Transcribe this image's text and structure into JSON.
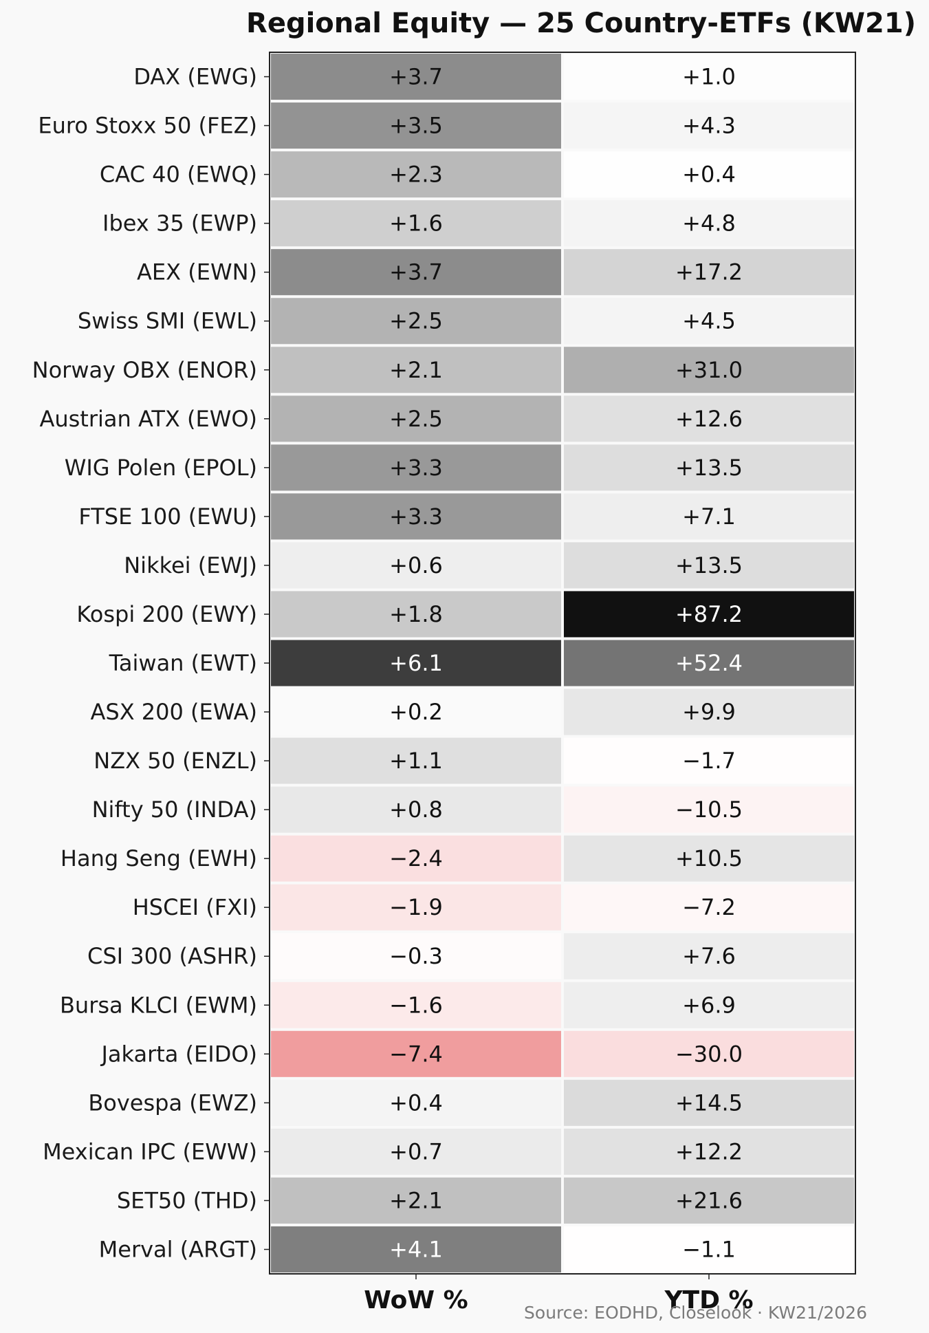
{
  "chart_data": {
    "type": "heatmap",
    "title": "Regional Equity — 25 Country-ETFs (KW21)",
    "source": "Source: EODHD, Closelook · KW21/2026",
    "rows": [
      "DAX (EWG)",
      "Euro Stoxx 50 (FEZ)",
      "CAC 40 (EWQ)",
      "Ibex 35 (EWP)",
      "AEX (EWN)",
      "Swiss SMI (EWL)",
      "Norway OBX (ENOR)",
      "Austrian ATX (EWO)",
      "WIG Polen (EPOL)",
      "FTSE 100 (EWU)",
      "Nikkei (EWJ)",
      "Kospi 200 (EWY)",
      "Taiwan (EWT)",
      "ASX 200 (EWA)",
      "NZX 50 (ENZL)",
      "Nifty 50 (INDA)",
      "Hang Seng (EWH)",
      "HSCEI (FXI)",
      "CSI 300 (ASHR)",
      "Bursa KLCI (EWM)",
      "Jakarta (EIDO)",
      "Bovespa (EWZ)",
      "Mexican IPC (EWW)",
      "SET50 (THD)",
      "Merval (ARGT)"
    ],
    "columns": [
      "WoW %",
      "YTD %"
    ],
    "values": [
      [
        3.7,
        1.0
      ],
      [
        3.5,
        4.3
      ],
      [
        2.3,
        0.4
      ],
      [
        1.6,
        4.8
      ],
      [
        3.7,
        17.2
      ],
      [
        2.5,
        4.5
      ],
      [
        2.1,
        31.0
      ],
      [
        2.5,
        12.6
      ],
      [
        3.3,
        13.5
      ],
      [
        3.3,
        7.1
      ],
      [
        0.6,
        13.5
      ],
      [
        1.8,
        87.2
      ],
      [
        6.1,
        52.4
      ],
      [
        0.2,
        9.9
      ],
      [
        1.1,
        -1.7
      ],
      [
        0.8,
        -10.5
      ],
      [
        -2.4,
        10.5
      ],
      [
        -1.9,
        -7.2
      ],
      [
        -0.3,
        7.6
      ],
      [
        -1.6,
        6.9
      ],
      [
        -7.4,
        -30.0
      ],
      [
        0.4,
        14.5
      ],
      [
        0.7,
        12.2
      ],
      [
        2.1,
        21.6
      ],
      [
        4.1,
        -1.1
      ]
    ],
    "labels": [
      [
        "+3.7",
        "+1.0"
      ],
      [
        "+3.5",
        "+4.3"
      ],
      [
        "+2.3",
        "+0.4"
      ],
      [
        "+1.6",
        "+4.8"
      ],
      [
        "+3.7",
        "+17.2"
      ],
      [
        "+2.5",
        "+4.5"
      ],
      [
        "+2.1",
        "+31.0"
      ],
      [
        "+2.5",
        "+12.6"
      ],
      [
        "+3.3",
        "+13.5"
      ],
      [
        "+3.3",
        "+7.1"
      ],
      [
        "+0.6",
        "+13.5"
      ],
      [
        "+1.8",
        "+87.2"
      ],
      [
        "+6.1",
        "+52.4"
      ],
      [
        "+0.2",
        "+9.9"
      ],
      [
        "+1.1",
        "−1.7"
      ],
      [
        "+0.8",
        "−10.5"
      ],
      [
        "−2.4",
        "+10.5"
      ],
      [
        "−1.9",
        "−7.2"
      ],
      [
        "−0.3",
        "+7.6"
      ],
      [
        "−1.6",
        "+6.9"
      ],
      [
        "−7.4",
        "−30.0"
      ],
      [
        "+0.4",
        "+14.5"
      ],
      [
        "+0.7",
        "+12.2"
      ],
      [
        "+2.1",
        "+21.6"
      ],
      [
        "+4.1",
        "−1.1"
      ]
    ],
    "colors": {
      "positive_max": "#111111",
      "negative_max": "#e8686a",
      "neutral": "#ffffff",
      "text_dark": "#111111",
      "text_light": "#ffffff",
      "frame": "#222222"
    }
  }
}
